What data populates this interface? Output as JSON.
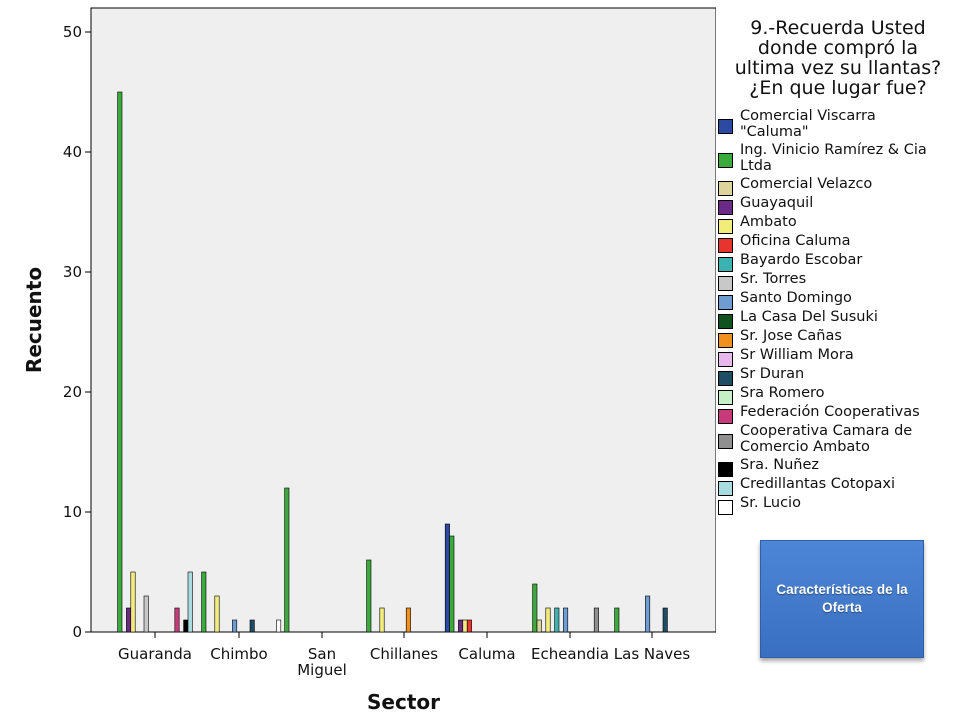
{
  "chart_data": {
    "type": "bar",
    "title": "9.-Recuerda Usted\ndonde compró la\nultima vez su llantas?\n¿En que lugar fue?",
    "xlabel": "Sector",
    "ylabel": "Recuento",
    "ylim": [
      0,
      52
    ],
    "yticks": [
      "0",
      "10",
      "20",
      "30",
      "40",
      "50"
    ],
    "grid": false,
    "legend_position": "right",
    "categories": [
      "Guaranda",
      "Chimbo",
      "San\nMiguel",
      "Chillanes",
      "Caluma",
      "Echeandia",
      "Las Naves"
    ],
    "series": [
      {
        "name": "Comercial Viscarra\n\"Caluma\"",
        "color": "#2d4aa3",
        "values": [
          0,
          0,
          0,
          0,
          9,
          0,
          0
        ]
      },
      {
        "name": "Ing. Vinicio Ramírez & Cia\nLtda",
        "color": "#3aaa3c",
        "values": [
          45,
          5,
          12,
          6,
          8,
          4,
          2
        ]
      },
      {
        "name": "Comercial Velazco",
        "color": "#ddd49b",
        "values": [
          0,
          0,
          0,
          0,
          0,
          1,
          0
        ]
      },
      {
        "name": "Guayaquil",
        "color": "#6b2a85",
        "values": [
          2,
          0,
          0,
          0,
          1,
          0,
          0
        ]
      },
      {
        "name": "Ambato",
        "color": "#f2ec7a",
        "values": [
          5,
          3,
          0,
          2,
          1,
          2,
          0
        ]
      },
      {
        "name": "Oficina Caluma",
        "color": "#e8342e",
        "values": [
          0,
          0,
          0,
          0,
          1,
          0,
          0
        ]
      },
      {
        "name": "Bayardo Escobar",
        "color": "#3bb3b0",
        "values": [
          0,
          0,
          0,
          0,
          0,
          2,
          0
        ]
      },
      {
        "name": "Sr. Torres",
        "color": "#c8c8c8",
        "values": [
          3,
          0,
          0,
          0,
          0,
          0,
          0
        ]
      },
      {
        "name": "Santo Domingo",
        "color": "#6f9dd2",
        "values": [
          0,
          1,
          0,
          0,
          0,
          2,
          3
        ]
      },
      {
        "name": "La Casa Del Susuki",
        "color": "#10531f",
        "values": [
          0,
          0,
          0,
          0,
          0,
          0,
          0
        ]
      },
      {
        "name": "Sr. Jose Cañas",
        "color": "#f0901f",
        "values": [
          0,
          0,
          0,
          2,
          0,
          0,
          0
        ]
      },
      {
        "name": "Sr William Mora",
        "color": "#e8b8ec",
        "values": [
          0,
          0,
          0,
          0,
          0,
          0,
          0
        ]
      },
      {
        "name": "Sr Duran",
        "color": "#1f4d66",
        "values": [
          0,
          1,
          0,
          0,
          0,
          0,
          2
        ]
      },
      {
        "name": "Sra Romero",
        "color": "#c5f0c5",
        "values": [
          0,
          0,
          0,
          0,
          0,
          0,
          0
        ]
      },
      {
        "name": "Federación Cooperativas",
        "color": "#c93a7a",
        "values": [
          2,
          0,
          0,
          0,
          0,
          0,
          0
        ]
      },
      {
        "name": "Cooperativa Camara de\nComercio Ambato",
        "color": "#8f8f8f",
        "values": [
          0,
          0,
          0,
          0,
          0,
          2,
          0
        ]
      },
      {
        "name": "Sra. Nuñez",
        "color": "#000000",
        "values": [
          1,
          0,
          0,
          0,
          0,
          0,
          0
        ]
      },
      {
        "name": "Credillantas Cotopaxi",
        "color": "#a9dce0",
        "values": [
          5,
          0,
          0,
          0,
          0,
          0,
          0
        ]
      },
      {
        "name": "Sr. Lucio",
        "color": "#ffffff",
        "values": [
          0,
          1,
          0,
          0,
          0,
          0,
          0
        ]
      }
    ]
  },
  "button": {
    "label": "Características\nde la Oferta",
    "color": "#4472c4"
  }
}
